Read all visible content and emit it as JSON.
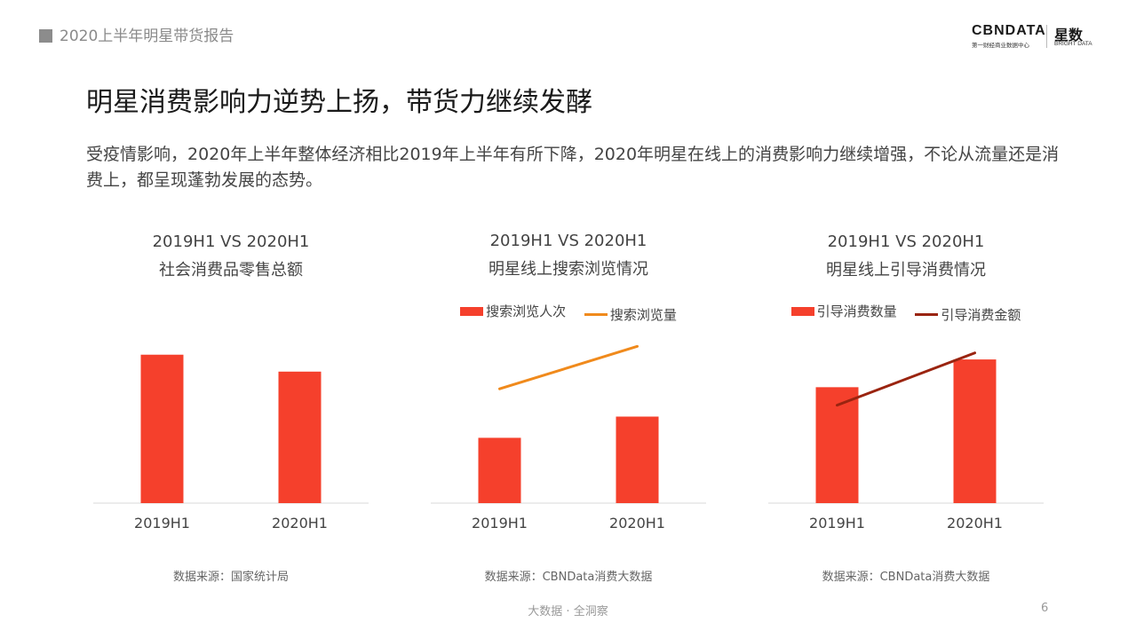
{
  "header": {
    "report_title": "2020上半年明星带货报告"
  },
  "logo": {
    "cbn": "CBNDATA",
    "cbn_sub": "第一财经商业数据中心",
    "xs": "星数",
    "xs_sub": "BRIGHT DATA"
  },
  "headline": "明星消费影响力逆势上扬，带货力继续发酵",
  "body_text": "受疫情影响，2020年上半年整体经济相比2019年上半年有所下降，2020年明星在线上的消费影响力继续增强，不论从流量还是消费上，都呈现蓬勃发展的态势。",
  "colors": {
    "bar": "#f5402c",
    "line_orange": "#f08a1c",
    "line_dark": "#9a2410",
    "axis": "#d9d9d9"
  },
  "chart_data": [
    {
      "type": "bar",
      "subtitle": "2019H1 VS 2020H1",
      "title": "社会消费品零售总额",
      "categories": [
        "2019H1",
        "2020H1"
      ],
      "series": [
        {
          "values": [
            100,
            88.6
          ]
        }
      ],
      "ylim": [
        0,
        110
      ],
      "legend": [],
      "source": "数据来源：国家统计局"
    },
    {
      "type": "bar",
      "subtitle": "2019H1 VS 2020H1",
      "title": "明星线上搜索浏览情况",
      "categories": [
        "2019H1",
        "2020H1"
      ],
      "series": [
        {
          "name": "搜索浏览人次",
          "type": "bar",
          "values": [
            40,
            53
          ]
        },
        {
          "name": "搜索浏览量",
          "type": "line",
          "values": [
            70,
            96
          ]
        }
      ],
      "ylim": [
        0,
        100
      ],
      "legend": [
        "搜索浏览人次",
        "搜索浏览量"
      ],
      "source": "数据来源：CBNData消费大数据"
    },
    {
      "type": "bar",
      "subtitle": "2019H1 VS 2020H1",
      "title": "明星线上引导消费情况",
      "categories": [
        "2019H1",
        "2020H1"
      ],
      "series": [
        {
          "name": "引导消费数量",
          "type": "bar",
          "values": [
            71,
            88
          ]
        },
        {
          "name": "引导消费金额",
          "type": "line",
          "values": [
            60,
            92
          ]
        }
      ],
      "ylim": [
        0,
        100
      ],
      "legend": [
        "引导消费数量",
        "引导消费金额"
      ],
      "source": "数据来源：CBNData消费大数据"
    }
  ],
  "footer": {
    "slogan": "大数据 · 全洞察",
    "page_number": "6"
  }
}
